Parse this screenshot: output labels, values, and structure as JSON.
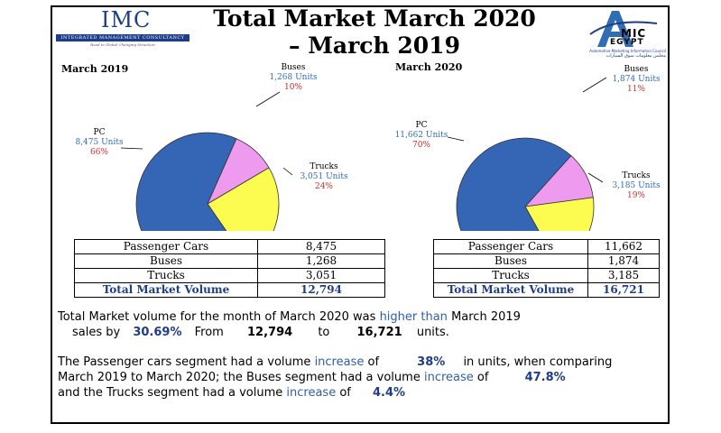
{
  "header": {
    "title_line1": "Total Market March 2020",
    "title_line2": "– March 2019",
    "imc": {
      "letters": "IMC",
      "band": "INTEGRATED MANAGEMENT CONSULTANCY",
      "tagline": "Road to Global Changing Structure"
    },
    "amic": {
      "word": "MIC",
      "sub": "EGYPT",
      "council": "Automotive Marketing Information Council",
      "arabic": "مجلس معلومات سوق السيارات"
    }
  },
  "colors": {
    "pc": "#3565b5",
    "buses": "#ee9aee",
    "trucks": "#fbfb50",
    "title_blue": "#1f3c88",
    "units_blue": "#2f6db5",
    "percent_red": "#d12b2b"
  },
  "chart_data": [
    {
      "type": "pie",
      "title": "March 2019",
      "categories": [
        "PC",
        "Buses",
        "Trucks"
      ],
      "values": [
        8475,
        1268,
        3051
      ],
      "units_labels": [
        "8,475 Units",
        "1,268 Units",
        "3,051 Units"
      ],
      "percent_labels": [
        "66%",
        "10%",
        "24%"
      ]
    },
    {
      "type": "pie",
      "title": "March 2020",
      "categories": [
        "PC",
        "Buses",
        "Trucks"
      ],
      "values": [
        11662,
        1874,
        3185
      ],
      "units_labels": [
        "11,662 Units",
        "1,874 Units",
        "3,185 Units"
      ],
      "percent_labels": [
        "70%",
        "11%",
        "19%"
      ]
    }
  ],
  "tables": {
    "march2019": {
      "rows": [
        {
          "name": "Passenger Cars",
          "value": "8,475"
        },
        {
          "name": "Buses",
          "value": "1,268"
        },
        {
          "name": "Trucks",
          "value": "3,051"
        }
      ],
      "total_label": "Total Market Volume",
      "total_value": "12,794"
    },
    "march2020": {
      "rows": [
        {
          "name": "Passenger Cars",
          "value": "11,662"
        },
        {
          "name": "Buses",
          "value": "1,874"
        },
        {
          "name": "Trucks",
          "value": "3,185"
        }
      ],
      "total_label": "Total Market Volume",
      "total_value": "16,721"
    }
  },
  "summary": {
    "line1_a": "Total Market volume for the month of March 2020 was",
    "line1_b": "higher than",
    "line1_c": "March 2019",
    "line2_a": "sales by",
    "line2_pct": "30.69%",
    "line2_from": "From",
    "line2_v1": "12,794",
    "line2_to": "to",
    "line2_v2": "16,721",
    "line2_units": "units.",
    "seg1_a": "The Passenger cars segment had a volume",
    "seg1_inc": "increase",
    "seg1_of": "of",
    "seg1_pct": "38%",
    "seg1_b": "in units, when comparing",
    "seg2_a": "March 2019 to March 2020; the Buses segment had a volume",
    "seg2_inc": "increase",
    "seg2_of": "of",
    "seg2_pct": "47.8%",
    "seg3_a": "and the Trucks segment had a volume",
    "seg3_inc": "increase",
    "seg3_of": "of",
    "seg3_pct": "4.4%"
  }
}
